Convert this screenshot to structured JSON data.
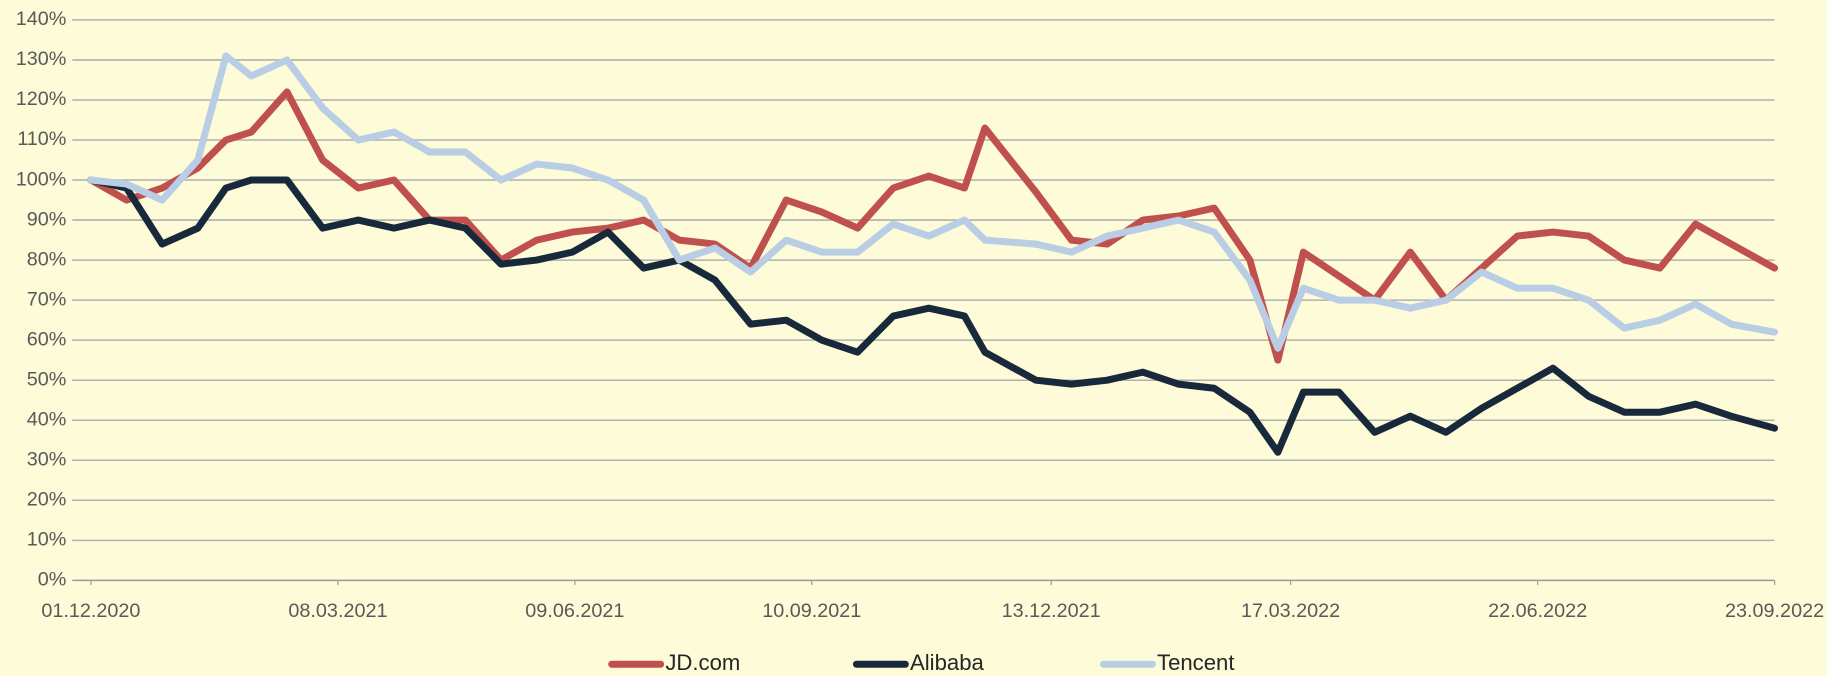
{
  "chart_data": {
    "type": "line",
    "x": [
      "01.12.2020",
      "15.12.2020",
      "29.12.2020",
      "12.01.2021",
      "23.01.2021",
      "02.02.2021",
      "16.02.2021",
      "02.03.2021",
      "16.03.2021",
      "30.03.2021",
      "13.04.2021",
      "27.04.2021",
      "11.05.2021",
      "25.05.2021",
      "08.06.2021",
      "22.06.2021",
      "06.07.2021",
      "20.07.2021",
      "03.08.2021",
      "17.08.2021",
      "31.08.2021",
      "14.09.2021",
      "28.09.2021",
      "12.10.2021",
      "26.10.2021",
      "09.11.2021",
      "17.11.2021",
      "07.12.2021",
      "21.12.2021",
      "04.01.2022",
      "18.01.2022",
      "01.02.2022",
      "15.02.2022",
      "01.03.2022",
      "12.03.2022",
      "22.03.2022",
      "05.04.2022",
      "19.04.2022",
      "03.05.2022",
      "17.05.2022",
      "31.05.2022",
      "14.06.2022",
      "28.06.2022",
      "12.07.2022",
      "26.07.2022",
      "09.08.2022",
      "23.08.2022",
      "06.09.2022",
      "23.09.2022"
    ],
    "series": [
      {
        "name": "JD.com",
        "color": "#c0504d",
        "values": [
          100,
          95,
          98,
          103,
          110,
          112,
          122,
          105,
          98,
          100,
          90,
          90,
          80,
          85,
          87,
          88,
          90,
          85,
          84,
          78,
          95,
          92,
          88,
          98,
          101,
          98,
          113,
          97,
          85,
          84,
          90,
          91,
          93,
          80,
          55,
          82,
          76,
          70,
          82,
          70,
          78,
          86,
          87,
          86,
          80,
          78,
          89,
          84,
          78
        ]
      },
      {
        "name": "Alibaba",
        "color": "#17293a",
        "values": [
          100,
          98,
          84,
          88,
          98,
          100,
          100,
          88,
          90,
          88,
          90,
          88,
          79,
          80,
          82,
          87,
          78,
          80,
          75,
          64,
          65,
          60,
          57,
          66,
          68,
          66,
          57,
          50,
          49,
          50,
          52,
          49,
          48,
          42,
          32,
          47,
          47,
          37,
          41,
          37,
          43,
          48,
          53,
          46,
          42,
          42,
          44,
          41,
          38
        ]
      },
      {
        "name": "Tencent",
        "color": "#b9cde5",
        "values": [
          100,
          99,
          95,
          105,
          131,
          126,
          130,
          118,
          110,
          112,
          107,
          107,
          100,
          104,
          103,
          100,
          95,
          80,
          83,
          77,
          85,
          82,
          82,
          89,
          86,
          90,
          85,
          84,
          82,
          86,
          88,
          90,
          87,
          75,
          58,
          73,
          70,
          70,
          68,
          70,
          77,
          73,
          73,
          70,
          63,
          65,
          69,
          64,
          62
        ]
      }
    ],
    "xlim": [
      "01.12.2020",
      "23.09.2022"
    ],
    "xticks": [
      "01.12.2020",
      "08.03.2021",
      "09.06.2021",
      "10.09.2021",
      "13.12.2021",
      "17.03.2022",
      "22.06.2022",
      "23.09.2022"
    ],
    "ylim": [
      0,
      140
    ],
    "yticks": [
      {
        "value": 0,
        "label": "0%"
      },
      {
        "value": 10,
        "label": "10%"
      },
      {
        "value": 20,
        "label": "20%"
      },
      {
        "value": 30,
        "label": "30%"
      },
      {
        "value": 40,
        "label": "40%"
      },
      {
        "value": 50,
        "label": "50%"
      },
      {
        "value": 60,
        "label": "60%"
      },
      {
        "value": 70,
        "label": "70%"
      },
      {
        "value": 80,
        "label": "80%"
      },
      {
        "value": 90,
        "label": "90%"
      },
      {
        "value": 100,
        "label": "100%"
      },
      {
        "value": 110,
        "label": "110%"
      },
      {
        "value": 120,
        "label": "120%"
      },
      {
        "value": 130,
        "label": "130%"
      },
      {
        "value": 140,
        "label": "140%"
      }
    ],
    "grid": true,
    "legend": "bottom"
  }
}
